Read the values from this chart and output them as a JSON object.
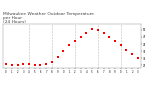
{
  "title": "Milwaukee Weather Outdoor Temperature\nper Hour\n(24 Hours)",
  "title_fontsize": 3.2,
  "title_color": "#444444",
  "x_hours": [
    0,
    1,
    2,
    3,
    4,
    5,
    6,
    7,
    8,
    9,
    10,
    11,
    12,
    13,
    14,
    15,
    16,
    17,
    18,
    19,
    20,
    21,
    22,
    23
  ],
  "temperatures": [
    28,
    27,
    27,
    28,
    28,
    27,
    27,
    28,
    29,
    33,
    37,
    41,
    44,
    47,
    50,
    53,
    52,
    50,
    47,
    44,
    41,
    38,
    35,
    32
  ],
  "dot_color": "#ff0000",
  "dot_size": 1.2,
  "ylim": [
    25,
    56
  ],
  "xlim": [
    -0.5,
    23.5
  ],
  "grid_color": "#aaaaaa",
  "bg_color": "#ffffff",
  "yticks": [
    27,
    32,
    37,
    42,
    47,
    52
  ],
  "ytick_labels": [
    "27",
    "32",
    "37",
    "42",
    "47",
    "52"
  ],
  "xtick_hours": [
    0,
    1,
    2,
    3,
    4,
    5,
    6,
    7,
    8,
    9,
    10,
    11,
    12,
    13,
    14,
    15,
    16,
    17,
    18,
    19,
    20,
    21,
    22,
    23
  ],
  "xtick_labels": [
    "0",
    "1",
    "2",
    "3",
    "4",
    "5",
    "6",
    "7",
    "8",
    "9",
    "0",
    "1",
    "2",
    "3",
    "4",
    "5",
    "6",
    "7",
    "8",
    "9",
    "0",
    "1",
    "2",
    "3"
  ]
}
